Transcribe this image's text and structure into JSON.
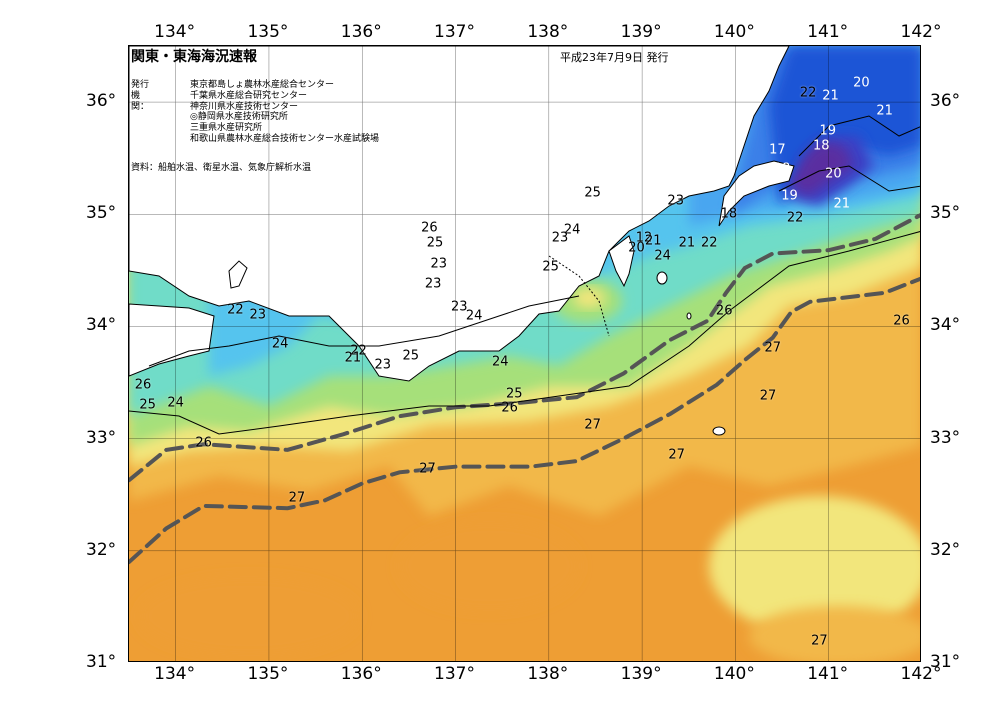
{
  "header": {
    "title": "関東・東海海況速報",
    "date": "平成23年7月9日 発行"
  },
  "organizations": {
    "label": "発行機関：",
    "items": [
      "東京都島しょ農林水産総合センター",
      "千葉県水産総合研究センター",
      "神奈川県水産技術センター",
      "◎静岡県水産技術研究所",
      "三重県水産研究所",
      "和歌山県農林水産総合技術センター水産試験場"
    ]
  },
  "source": "資料：船舶水温、衛星水温、気象庁解析水温",
  "axes": {
    "longitude_ticks": [
      "134°",
      "135°",
      "136°",
      "137°",
      "138°",
      "139°",
      "140°",
      "141°",
      "142°"
    ],
    "latitude_ticks": [
      "36°",
      "35°",
      "34°",
      "33°",
      "32°",
      "31°"
    ]
  },
  "extent": {
    "lon": [
      133.5,
      142.0
    ],
    "lat": [
      31.0,
      36.5
    ]
  },
  "colors": {
    "temp_17_18": "#5a2fa0",
    "temp_19": "#3b3fc4",
    "temp_20": "#1f55d6",
    "temp_21": "#3a7fe8",
    "temp_22": "#4aa6f0",
    "temp_23": "#55c4ee",
    "temp_24": "#6fdcc8",
    "temp_25": "#a6e07a",
    "temp_26": "#f2e67c",
    "temp_27": "#f2b84a",
    "temp_28": "#ee9e34",
    "land": "#ffffff",
    "kuroshio_axis": "#555555"
  },
  "contour_labels": [
    {
      "text": "22",
      "lon": 140.78,
      "lat": 36.08
    },
    {
      "text": "21",
      "lon": 141.02,
      "lat": 36.05
    },
    {
      "text": "20",
      "lon": 141.35,
      "lat": 36.17
    },
    {
      "text": "21",
      "lon": 141.6,
      "lat": 35.92
    },
    {
      "text": "19",
      "lon": 140.99,
      "lat": 35.74
    },
    {
      "text": "18",
      "lon": 140.92,
      "lat": 35.61
    },
    {
      "text": "17",
      "lon": 140.45,
      "lat": 35.57
    },
    {
      "text": "18",
      "lon": 140.5,
      "lat": 35.4
    },
    {
      "text": "20",
      "lon": 141.05,
      "lat": 35.36
    },
    {
      "text": "19",
      "lon": 140.58,
      "lat": 35.16
    },
    {
      "text": "21",
      "lon": 141.14,
      "lat": 35.09
    },
    {
      "text": "22",
      "lon": 140.64,
      "lat": 34.97
    },
    {
      "text": "18",
      "lon": 139.93,
      "lat": 35.0
    },
    {
      "text": "23",
      "lon": 139.36,
      "lat": 35.12
    },
    {
      "text": "25",
      "lon": 138.47,
      "lat": 35.19
    },
    {
      "text": "24",
      "lon": 138.25,
      "lat": 34.86
    },
    {
      "text": "23",
      "lon": 138.12,
      "lat": 34.79
    },
    {
      "text": "25",
      "lon": 138.02,
      "lat": 34.53
    },
    {
      "text": "12",
      "lon": 139.02,
      "lat": 34.79
    },
    {
      "text": "21",
      "lon": 139.12,
      "lat": 34.76
    },
    {
      "text": "20",
      "lon": 138.94,
      "lat": 34.7
    },
    {
      "text": "24",
      "lon": 139.22,
      "lat": 34.63
    },
    {
      "text": "21",
      "lon": 139.48,
      "lat": 34.74
    },
    {
      "text": "22",
      "lon": 139.72,
      "lat": 34.74
    },
    {
      "text": "26",
      "lon": 136.72,
      "lat": 34.88
    },
    {
      "text": "25",
      "lon": 136.78,
      "lat": 34.74
    },
    {
      "text": "23",
      "lon": 136.82,
      "lat": 34.56
    },
    {
      "text": "23",
      "lon": 136.76,
      "lat": 34.38
    },
    {
      "text": "23",
      "lon": 137.04,
      "lat": 34.17
    },
    {
      "text": "24",
      "lon": 137.2,
      "lat": 34.09
    },
    {
      "text": "22",
      "lon": 134.64,
      "lat": 34.15
    },
    {
      "text": "23",
      "lon": 134.88,
      "lat": 34.1
    },
    {
      "text": "24",
      "lon": 135.12,
      "lat": 33.84
    },
    {
      "text": "22",
      "lon": 135.96,
      "lat": 33.78
    },
    {
      "text": "21",
      "lon": 135.9,
      "lat": 33.72
    },
    {
      "text": "23",
      "lon": 136.22,
      "lat": 33.66
    },
    {
      "text": "25",
      "lon": 136.52,
      "lat": 33.74
    },
    {
      "text": "24",
      "lon": 137.48,
      "lat": 33.68
    },
    {
      "text": "25",
      "lon": 137.63,
      "lat": 33.4
    },
    {
      "text": "26",
      "lon": 137.58,
      "lat": 33.27
    },
    {
      "text": "26",
      "lon": 139.88,
      "lat": 34.14
    },
    {
      "text": "27",
      "lon": 140.4,
      "lat": 33.81
    },
    {
      "text": "27",
      "lon": 140.35,
      "lat": 33.38
    },
    {
      "text": "26",
      "lon": 141.78,
      "lat": 34.05
    },
    {
      "text": "27",
      "lon": 138.47,
      "lat": 33.12
    },
    {
      "text": "27",
      "lon": 139.37,
      "lat": 32.85
    },
    {
      "text": "26",
      "lon": 134.3,
      "lat": 32.96
    },
    {
      "text": "27",
      "lon": 136.7,
      "lat": 32.73
    },
    {
      "text": "27",
      "lon": 135.3,
      "lat": 32.47
    },
    {
      "text": "26",
      "lon": 133.65,
      "lat": 33.48
    },
    {
      "text": "25",
      "lon": 133.7,
      "lat": 33.3
    },
    {
      "text": "24",
      "lon": 134.0,
      "lat": 33.32
    },
    {
      "text": "27",
      "lon": 140.9,
      "lat": 31.2
    }
  ],
  "kuroshio_axes": [
    {
      "points": [
        [
          133.5,
          32.63
        ],
        [
          133.9,
          32.9
        ],
        [
          134.3,
          32.95
        ],
        [
          135.2,
          32.9
        ],
        [
          135.8,
          33.04
        ],
        [
          136.4,
          33.2
        ],
        [
          137.0,
          33.28
        ],
        [
          137.7,
          33.32
        ],
        [
          138.3,
          33.37
        ],
        [
          138.8,
          33.58
        ],
        [
          139.3,
          33.88
        ],
        [
          139.7,
          34.05
        ],
        [
          139.9,
          34.3
        ],
        [
          140.1,
          34.52
        ],
        [
          140.4,
          34.65
        ],
        [
          141.0,
          34.68
        ],
        [
          141.5,
          34.78
        ],
        [
          142.0,
          35.0
        ]
      ]
    },
    {
      "points": [
        [
          133.5,
          31.9
        ],
        [
          133.9,
          32.2
        ],
        [
          134.3,
          32.4
        ],
        [
          135.2,
          32.38
        ],
        [
          135.6,
          32.45
        ],
        [
          136.0,
          32.6
        ],
        [
          136.4,
          32.7
        ],
        [
          137.0,
          32.75
        ],
        [
          137.8,
          32.75
        ],
        [
          138.3,
          32.8
        ],
        [
          138.8,
          33.0
        ],
        [
          139.3,
          33.22
        ],
        [
          139.8,
          33.48
        ],
        [
          140.1,
          33.7
        ],
        [
          140.4,
          33.9
        ],
        [
          140.6,
          34.13
        ],
        [
          140.8,
          34.22
        ],
        [
          141.6,
          34.3
        ],
        [
          142.0,
          34.43
        ]
      ]
    }
  ]
}
